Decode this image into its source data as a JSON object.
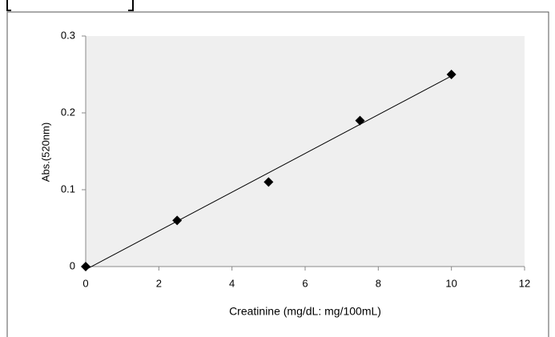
{
  "chart_data": {
    "type": "scatter",
    "x_label": "Creatinine (mg/dL: mg/100mL)",
    "y_label": "Abs.(520nm)",
    "series": [
      {
        "x": [
          0,
          2.5,
          5,
          7.5,
          10
        ],
        "values": [
          0,
          0.06,
          0.11,
          0.19,
          0.25
        ],
        "color": "#000000"
      }
    ],
    "trendline": "linear",
    "xlim": [
      0,
      12
    ],
    "xticks": [
      0,
      2,
      4,
      6,
      8,
      10,
      12
    ],
    "ylim": [
      0,
      0.3
    ],
    "yticks": [
      0,
      0.1,
      0.2,
      0.3
    ],
    "plot_background": "#efefef"
  }
}
